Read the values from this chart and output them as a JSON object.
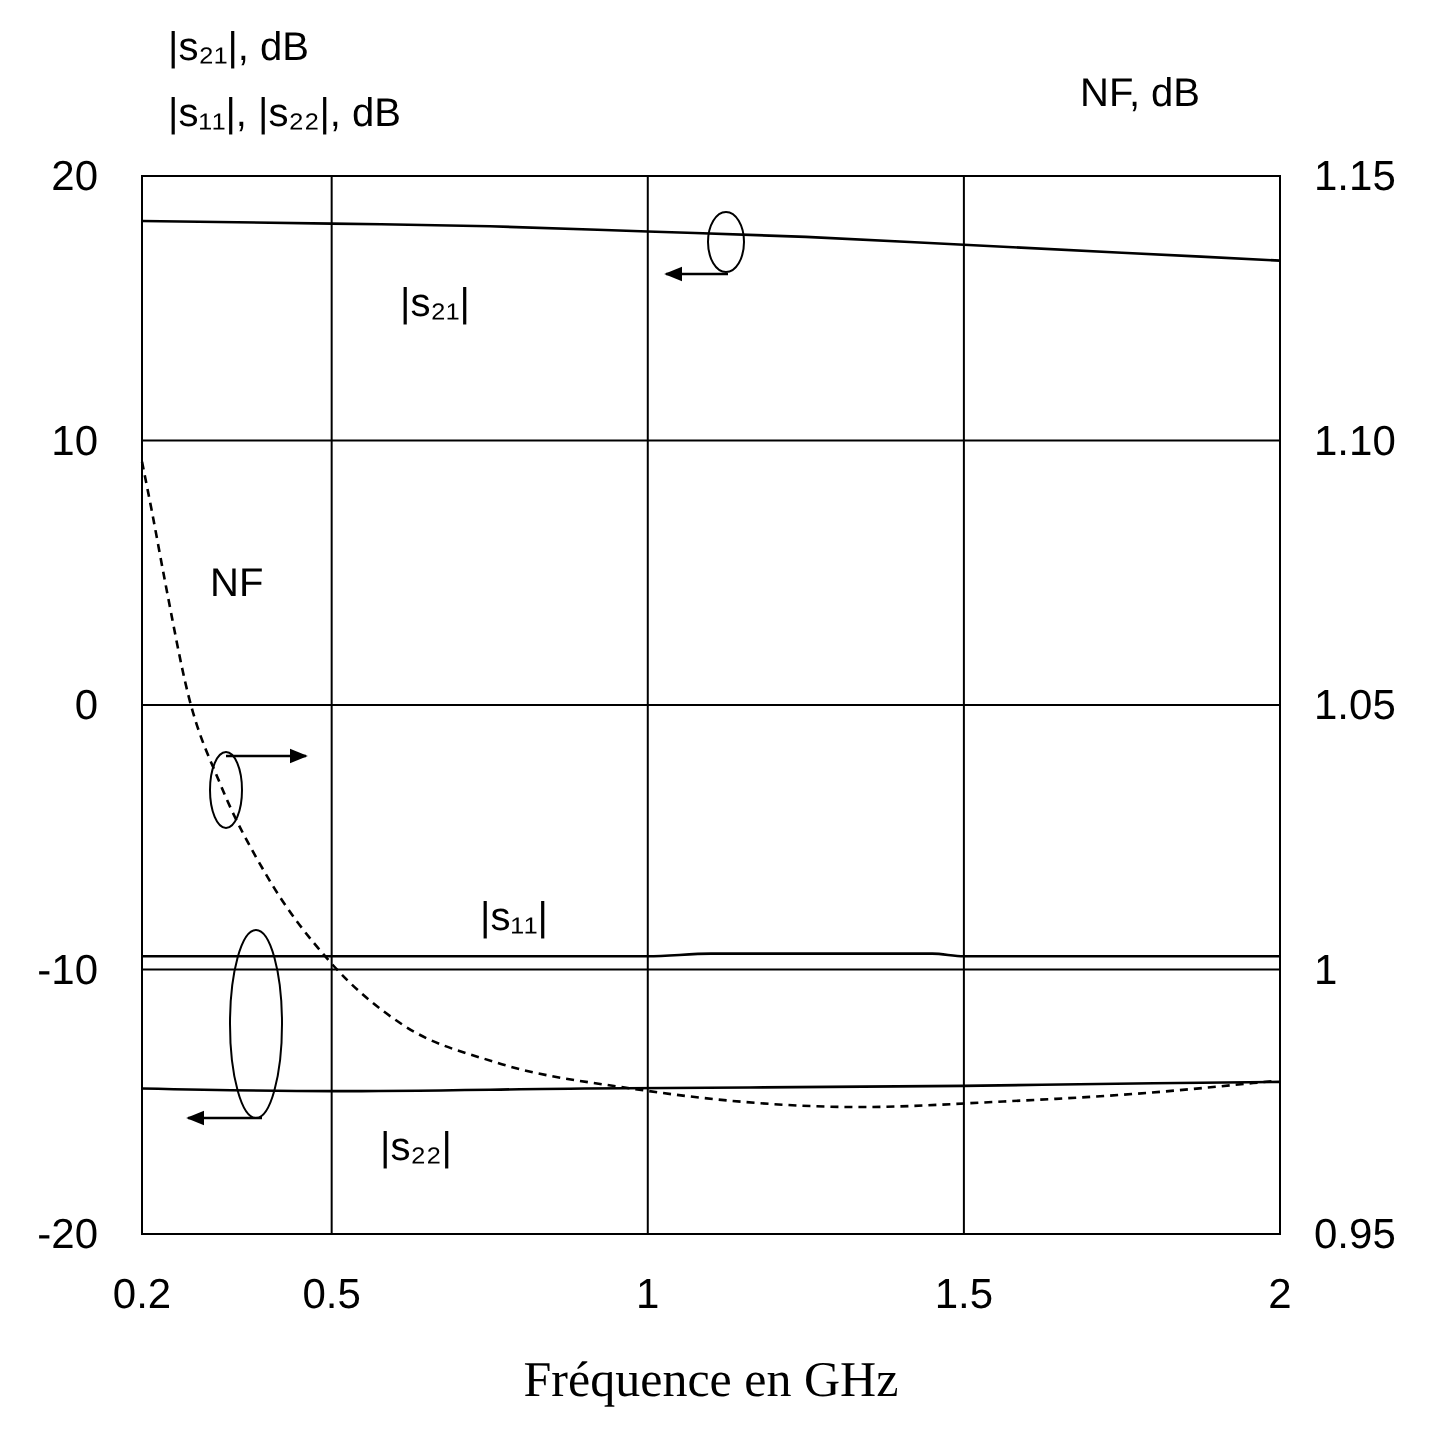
{
  "chart_data": {
    "type": "line",
    "ylabel": "|s₂₁|, dB\n|s₁₁|, |s₂₂|, dB",
    "y2label": "NF, dB",
    "xlabel": "Fréquence en GHz",
    "xlim": [
      0.2,
      2
    ],
    "xticks": [
      0.2,
      0.5,
      1,
      1.5,
      2
    ],
    "ylim": [
      -20,
      20
    ],
    "yticks": [
      -20,
      -10,
      0,
      10,
      20
    ],
    "y2lim": [
      0.95,
      1.15
    ],
    "y2ticks": [
      0.95,
      1,
      1.05,
      {
        "value": 1.1,
        "label": "1.10"
      },
      1.15
    ],
    "grid": true,
    "series": [
      {
        "name": "|s₂₁|",
        "color": "#000000",
        "line_style": "solid",
        "x": [
          0.2,
          0.5,
          0.75,
          1,
          1.25,
          1.5,
          1.75,
          2
        ],
        "values": [
          18.3,
          18.2,
          18.1,
          17.9,
          17.7,
          17.4,
          17.1,
          16.8
        ]
      },
      {
        "name": "|s₁₁|",
        "color": "#000000",
        "line_style": "solid",
        "x": [
          0.2,
          0.5,
          1,
          1.1,
          1.45,
          1.5,
          2
        ],
        "values": [
          -9.5,
          -9.5,
          -9.5,
          -9.4,
          -9.4,
          -9.5,
          -9.5
        ]
      },
      {
        "name": "|s₂₂|",
        "color": "#000000",
        "line_style": "solid",
        "x": [
          0.2,
          0.5,
          0.9,
          1.5,
          1.8,
          2
        ],
        "values": [
          -14.5,
          -14.6,
          -14.5,
          -14.4,
          -14.3,
          -14.25
        ]
      },
      {
        "name": "NF",
        "color": "#000000",
        "line_style": "dashed",
        "axis": "y2",
        "x": [
          0.2,
          0.215,
          0.237,
          0.273,
          0.324,
          0.396,
          0.497,
          0.613,
          0.758,
          0.974,
          1.337,
          1.554,
          1.771,
          1.996
        ],
        "values": [
          1.096,
          1.087,
          1.073,
          1.052,
          1.035,
          1.018,
          1.0015,
          0.9895,
          0.9825,
          0.9775,
          0.974,
          0.975,
          0.9765,
          0.979
        ]
      }
    ]
  }
}
